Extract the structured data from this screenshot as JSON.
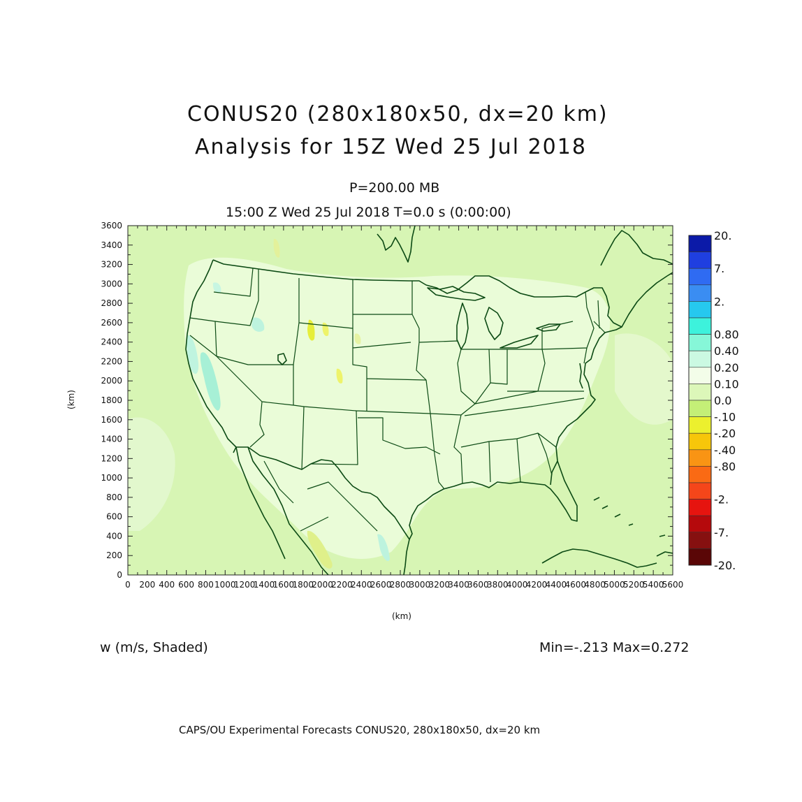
{
  "header": {
    "title_line1": "CONUS20 (280x180x50, dx=20 km)",
    "title_line2": "Analysis for 15Z Wed 25 Jul 2018",
    "level": "P=200.00 MB",
    "time": "15:00 Z Wed 25 Jul 2018    T=0.0 s (0:00:00)"
  },
  "map": {
    "x_label": "(km)",
    "y_label": "(km)",
    "x_ticks": [
      "0",
      "200",
      "400",
      "600",
      "800",
      "1000",
      "1200",
      "1400",
      "1600",
      "1800",
      "2000",
      "2200",
      "2400",
      "2600",
      "2800",
      "3000",
      "3200",
      "3400",
      "3600",
      "3800",
      "4000",
      "4200",
      "4400",
      "4600",
      "4800",
      "5000",
      "5200",
      "5400",
      "5600"
    ],
    "y_ticks": [
      "0",
      "200",
      "400",
      "600",
      "800",
      "1000",
      "1200",
      "1400",
      "1600",
      "1800",
      "2000",
      "2200",
      "2400",
      "2600",
      "2800",
      "3000",
      "3200",
      "3400",
      "3600"
    ],
    "background_color": "#d7f5b4",
    "boundary_color": "#0c4a14"
  },
  "colorbar": {
    "labels": [
      "20.",
      "7.",
      "2.",
      "0.80",
      "0.40",
      "0.20",
      "0.10",
      "0.0",
      "-.10",
      "-.20",
      "-.40",
      "-.80",
      "-2.",
      "-7.",
      "-20."
    ],
    "colors": [
      "#0b1aa8",
      "#1f3fe0",
      "#2f6bf2",
      "#3a8df2",
      "#26c8ef",
      "#3df2dc",
      "#86f7d8",
      "#cbf9e2",
      "#f3fde9",
      "#dcf7b9",
      "#c4ef77",
      "#ecf02e",
      "#f7c60a",
      "#f99414",
      "#fa6a14",
      "#f5461a",
      "#e6140f",
      "#b5090c",
      "#861010",
      "#5a0606"
    ]
  },
  "footer": {
    "field": "w (m/s, Shaded)",
    "minmax": "Min=-.213  Max=0.272",
    "credit": "CAPS/OU Experimental Forecasts   CONUS20, 280x180x50, dx=20 km"
  }
}
